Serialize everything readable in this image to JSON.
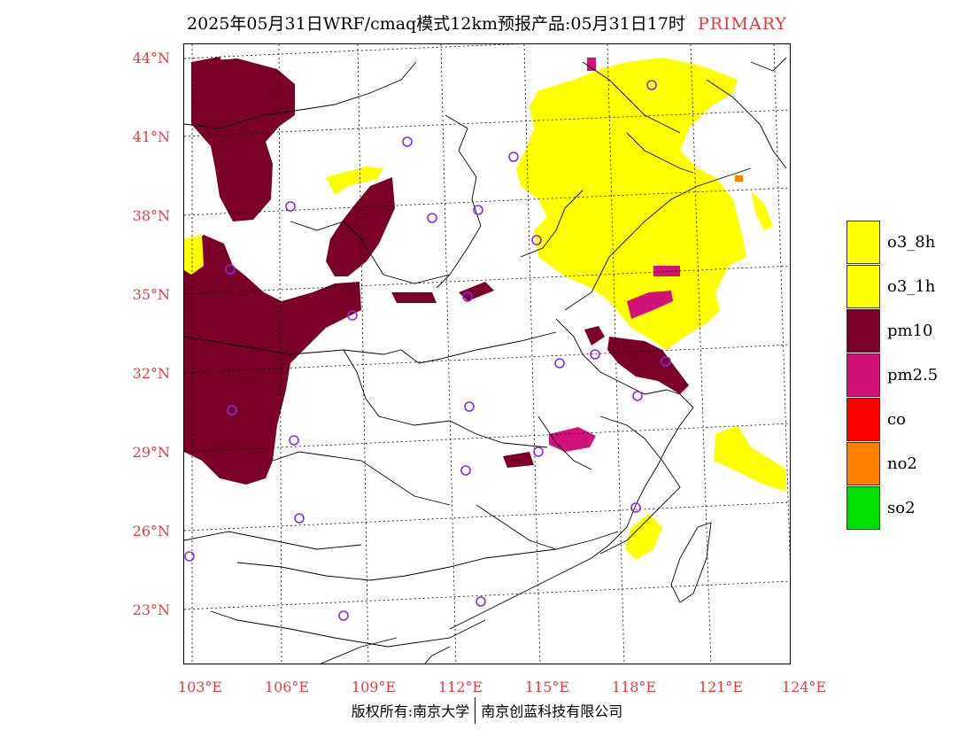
{
  "header": {
    "title": "2025年05月31日WRF/cmaq模式12km预报产品:05月31日17时",
    "tag": "PRIMARY"
  },
  "map": {
    "lat_labels": [
      "44°N",
      "41°N",
      "38°N",
      "35°N",
      "32°N",
      "29°N",
      "26°N",
      "23°N"
    ],
    "lon_labels": [
      "103°E",
      "106°E",
      "109°E",
      "112°E",
      "115°E",
      "118°E",
      "121°E",
      "124°E"
    ],
    "pollutant_colors": {
      "o3_8h": "#ffff00",
      "o3_1h": "#ffff00",
      "pm10": "#7a0028",
      "pm2.5": "#d2127a",
      "co": "#ff0000",
      "no2": "#ff8000",
      "so2": "#00e000"
    },
    "station_marker_color": "#8a2be2"
  },
  "legend": {
    "items": [
      {
        "label": "o3_8h",
        "color": "#ffff00"
      },
      {
        "label": "o3_1h",
        "color": "#ffff00"
      },
      {
        "label": "pm10",
        "color": "#7a0028"
      },
      {
        "label": "pm2.5",
        "color": "#d2127a"
      },
      {
        "label": "co",
        "color": "#ff0000"
      },
      {
        "label": "no2",
        "color": "#ff8000"
      },
      {
        "label": "so2",
        "color": "#00e000"
      }
    ]
  },
  "footer": {
    "left": "版权所有:南京大学",
    "right": "南京创蓝科技有限公司"
  }
}
